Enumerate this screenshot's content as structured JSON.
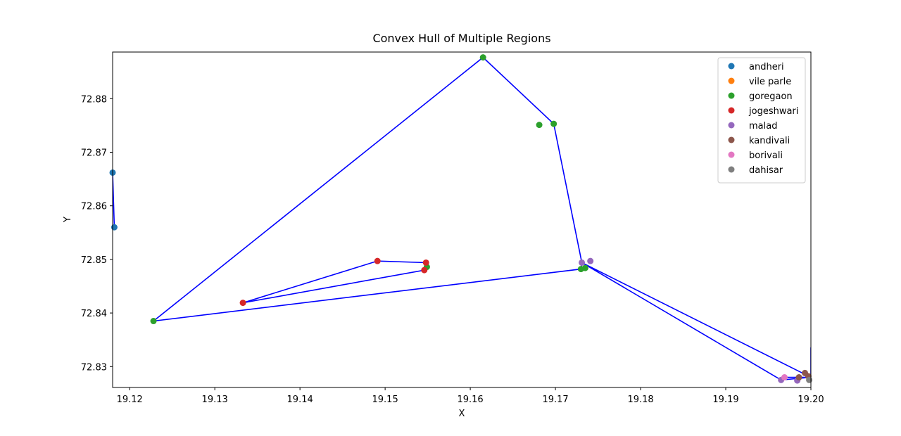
{
  "chart_data": {
    "type": "scatter",
    "title": "Convex Hull of Multiple Regions",
    "x_label": "X",
    "y_label": "Y",
    "xlim": [
      19.118,
      19.2
    ],
    "ylim": [
      72.8261,
      72.8887
    ],
    "xticks": [
      19.12,
      19.13,
      19.14,
      19.15,
      19.16,
      19.17,
      19.18,
      19.19,
      {
        "value": 19.2,
        "label": "19.20"
      }
    ],
    "yticks": [
      72.83,
      72.84,
      72.85,
      72.86,
      72.87,
      72.88
    ],
    "legend": "upper right",
    "series": [
      {
        "name": "andheri",
        "color": "#1f77b4",
        "x": [
          19.118,
          19.1182
        ],
        "y": [
          72.8662,
          72.856
        ]
      },
      {
        "name": "vile parle",
        "color": "#ff7f0e",
        "x": [],
        "y": []
      },
      {
        "name": "goregaon",
        "color": "#2ca02c",
        "x": [
          19.1615,
          19.1698,
          19.1681,
          19.1228,
          19.173,
          19.1735,
          19.1549
        ],
        "y": [
          72.8877,
          72.8753,
          72.8751,
          72.8385,
          72.8482,
          72.8484,
          72.8486
        ]
      },
      {
        "name": "jogeshwari",
        "color": "#d62728",
        "x": [
          19.1333,
          19.1491,
          19.1548,
          19.1546
        ],
        "y": [
          72.8419,
          72.8497,
          72.8494,
          72.848
        ]
      },
      {
        "name": "malad",
        "color": "#9467bd",
        "x": [
          19.1731,
          19.1741,
          19.1965,
          19.1984
        ],
        "y": [
          72.8494,
          72.8497,
          72.8275,
          72.8274
        ]
      },
      {
        "name": "kandivali",
        "color": "#8c564b",
        "x": [
          19.1993,
          19.1997,
          19.1986
        ],
        "y": [
          72.8288,
          72.8282,
          72.828
        ]
      },
      {
        "name": "borivali",
        "color": "#e377c2",
        "x": [
          19.1969
        ],
        "y": [
          72.828
        ]
      },
      {
        "name": "dahisar",
        "color": "#7f7f7f",
        "x": [
          19.1998
        ],
        "y": [
          72.8275
        ]
      }
    ],
    "hulls": [
      {
        "color": "#0000ff",
        "x": [
          19.118,
          19.1182
        ],
        "y": [
          72.8662,
          72.856
        ]
      },
      {
        "color": "#0000ff",
        "x": [
          19.1228,
          19.1615,
          19.1698,
          19.1731,
          19.173,
          19.1228
        ],
        "y": [
          72.8385,
          72.8877,
          72.8753,
          72.8494,
          72.8482,
          72.8385
        ]
      },
      {
        "color": "#0000ff",
        "x": [
          19.1333,
          19.1491,
          19.1548,
          19.1546,
          19.1333
        ],
        "y": [
          72.8419,
          72.8497,
          72.8494,
          72.848,
          72.8419
        ]
      },
      {
        "color": "#0000ff",
        "x": [
          19.1731,
          19.2,
          19.1965,
          19.1731
        ],
        "y": [
          72.8494,
          72.828,
          72.8275,
          72.8494
        ]
      },
      {
        "color": "#0000ff",
        "x": [
          19.1965,
          19.2,
          19.2,
          19.205
        ],
        "y": [
          72.828,
          72.828,
          72.8335,
          72.838
        ]
      }
    ]
  }
}
